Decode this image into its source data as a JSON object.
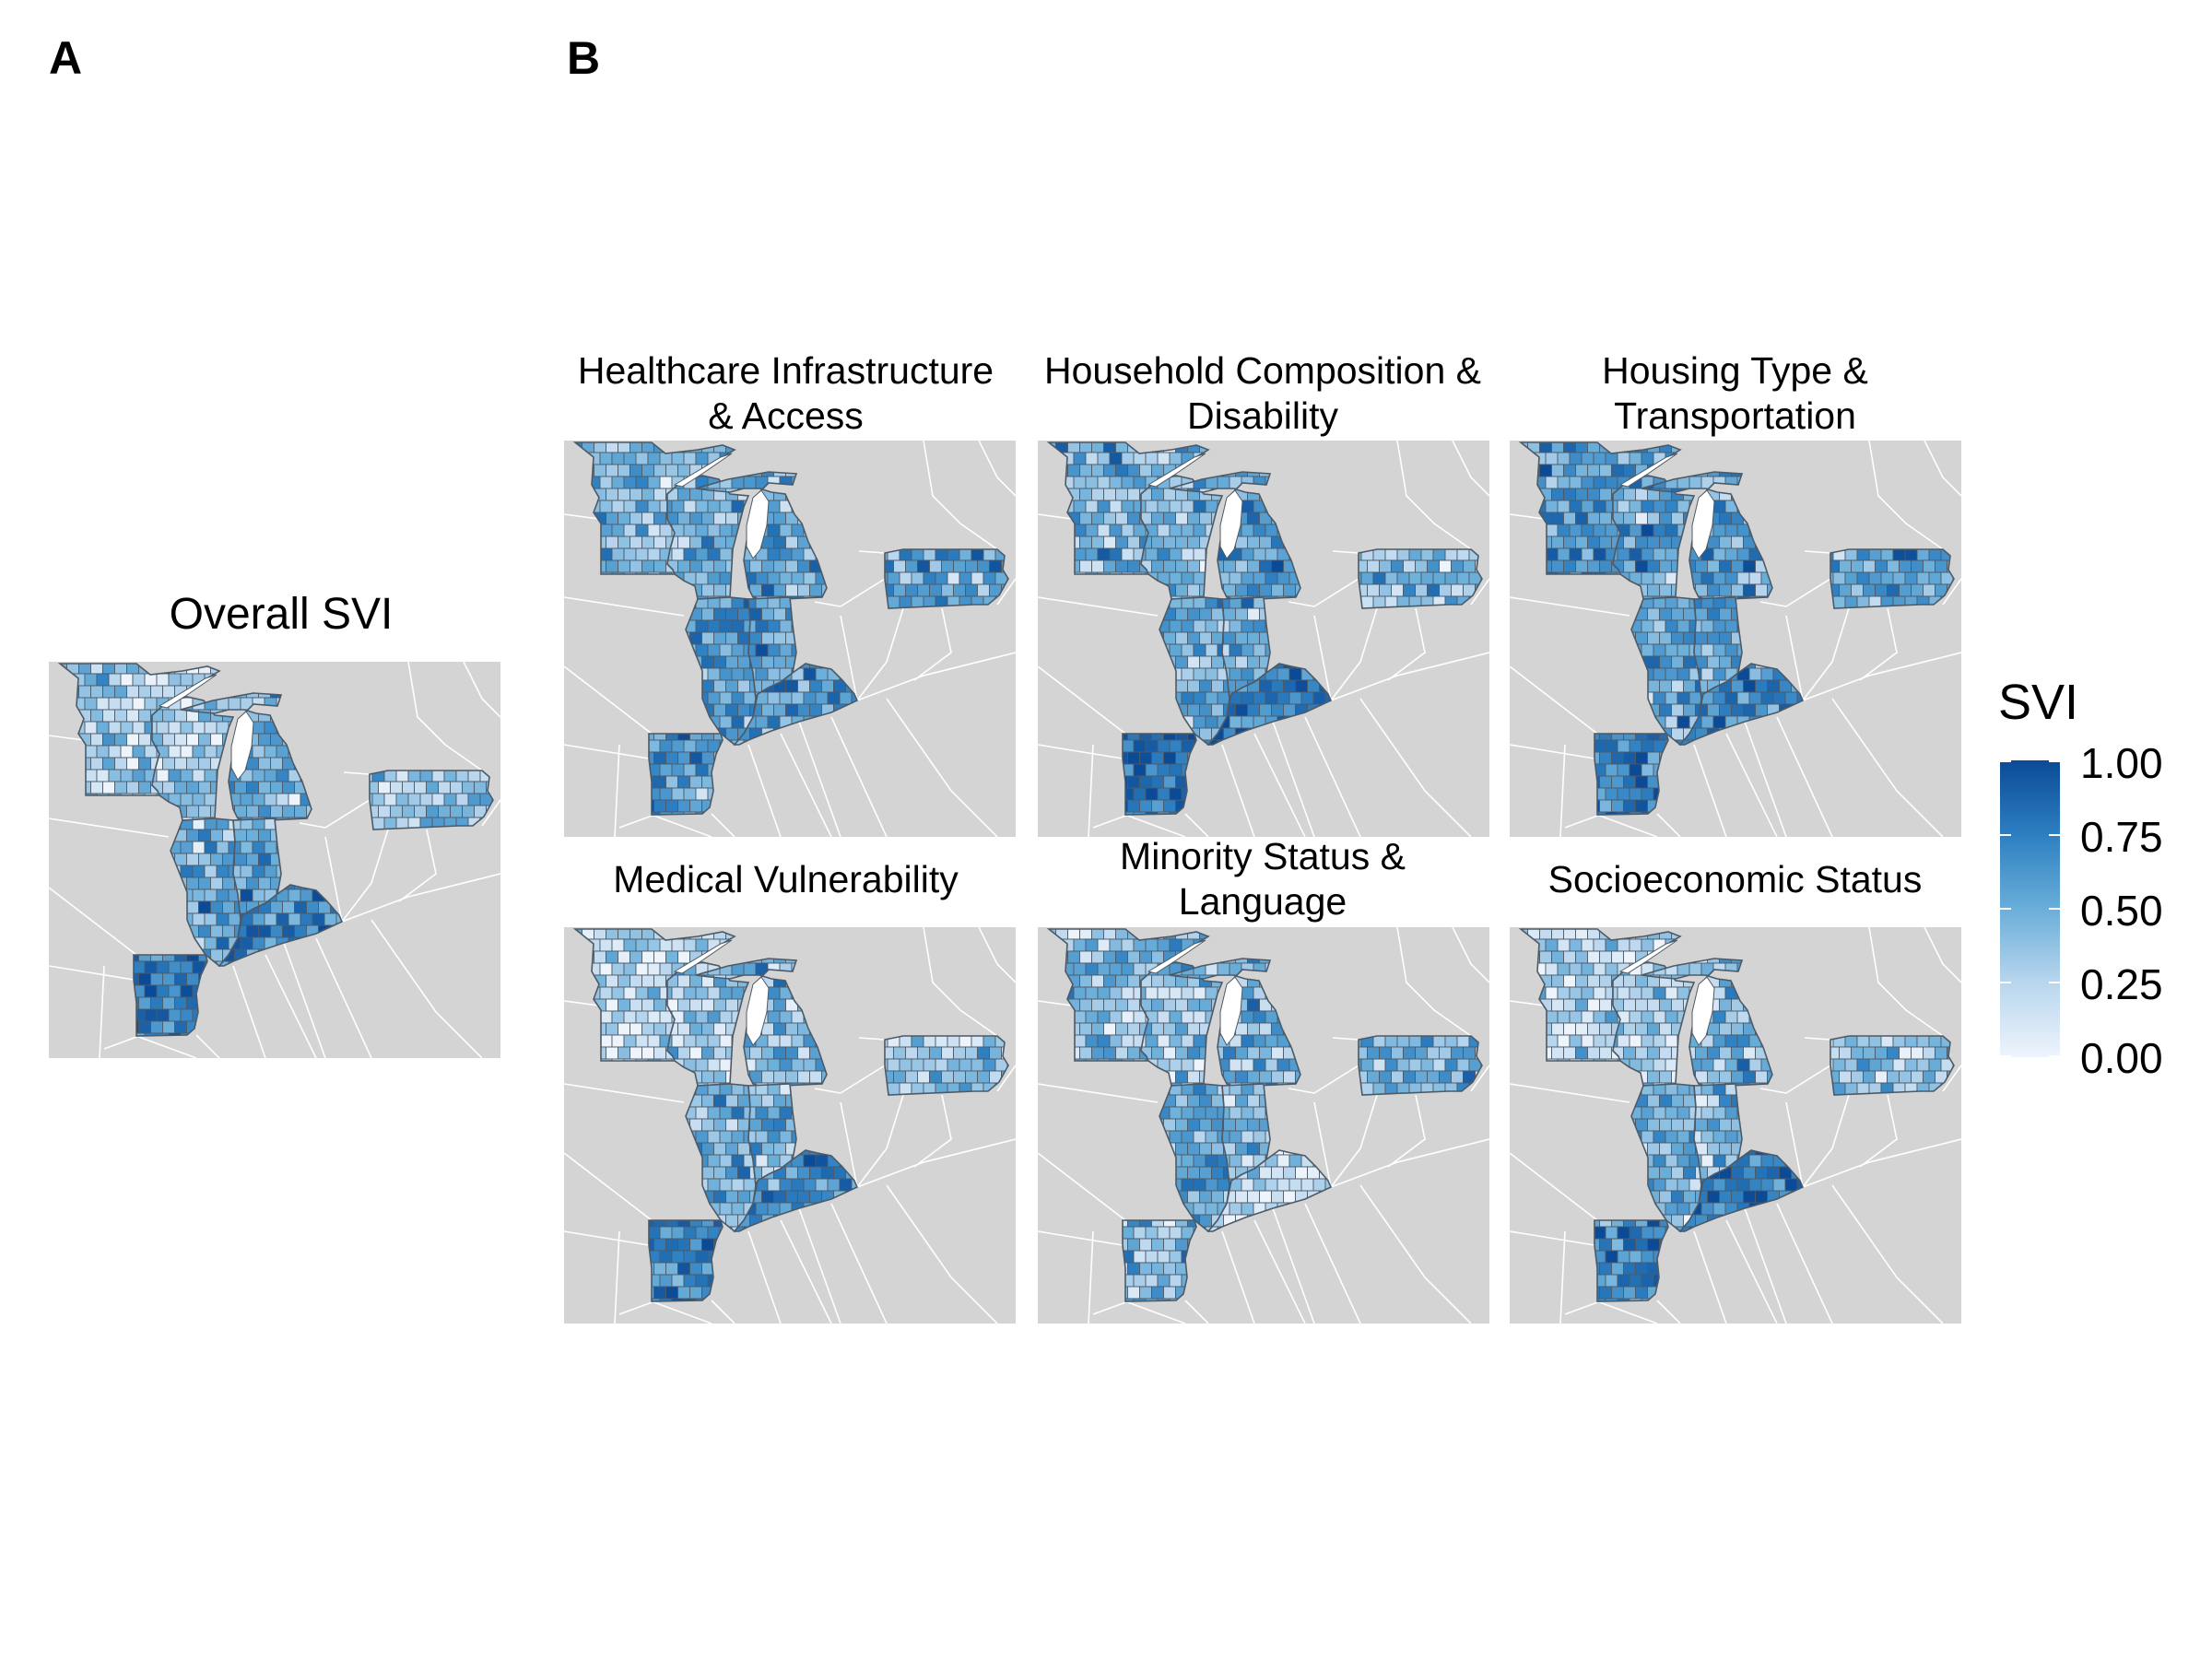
{
  "panels": {
    "a": "A",
    "b": "B"
  },
  "overall": {
    "title": "Overall SVI",
    "scheme": "overall"
  },
  "themes": [
    {
      "line1": "Healthcare Infrastructure",
      "line2": "& Access",
      "scheme": "healthcare"
    },
    {
      "line1": "Household Composition &",
      "line2": "Disability",
      "scheme": "household"
    },
    {
      "line1": "Housing Type &",
      "line2": "Transportation",
      "scheme": "housing"
    },
    {
      "line1": "Medical Vulnerability",
      "line2": "",
      "scheme": "medical"
    },
    {
      "line1": "Minority Status &",
      "line2": "Language",
      "scheme": "minority"
    },
    {
      "line1": "Socioeconomic Status",
      "line2": "",
      "scheme": "socioeconomic"
    }
  ],
  "legend": {
    "title": "SVI",
    "ticks": [
      "1.00",
      "0.75",
      "0.50",
      "0.25",
      "0.00"
    ],
    "low_color": "#eef4fc",
    "high_color": "#0b4a96"
  },
  "colors": {
    "land": "#d4d4d4",
    "border": "#ffffff",
    "county_outline": "#4d5a66",
    "lake": "#ffffff"
  },
  "states_shown": [
    "Minnesota",
    "Wisconsin",
    "Michigan",
    "Illinois",
    "Indiana",
    "Kentucky",
    "Arkansas",
    "Pennsylvania"
  ]
}
